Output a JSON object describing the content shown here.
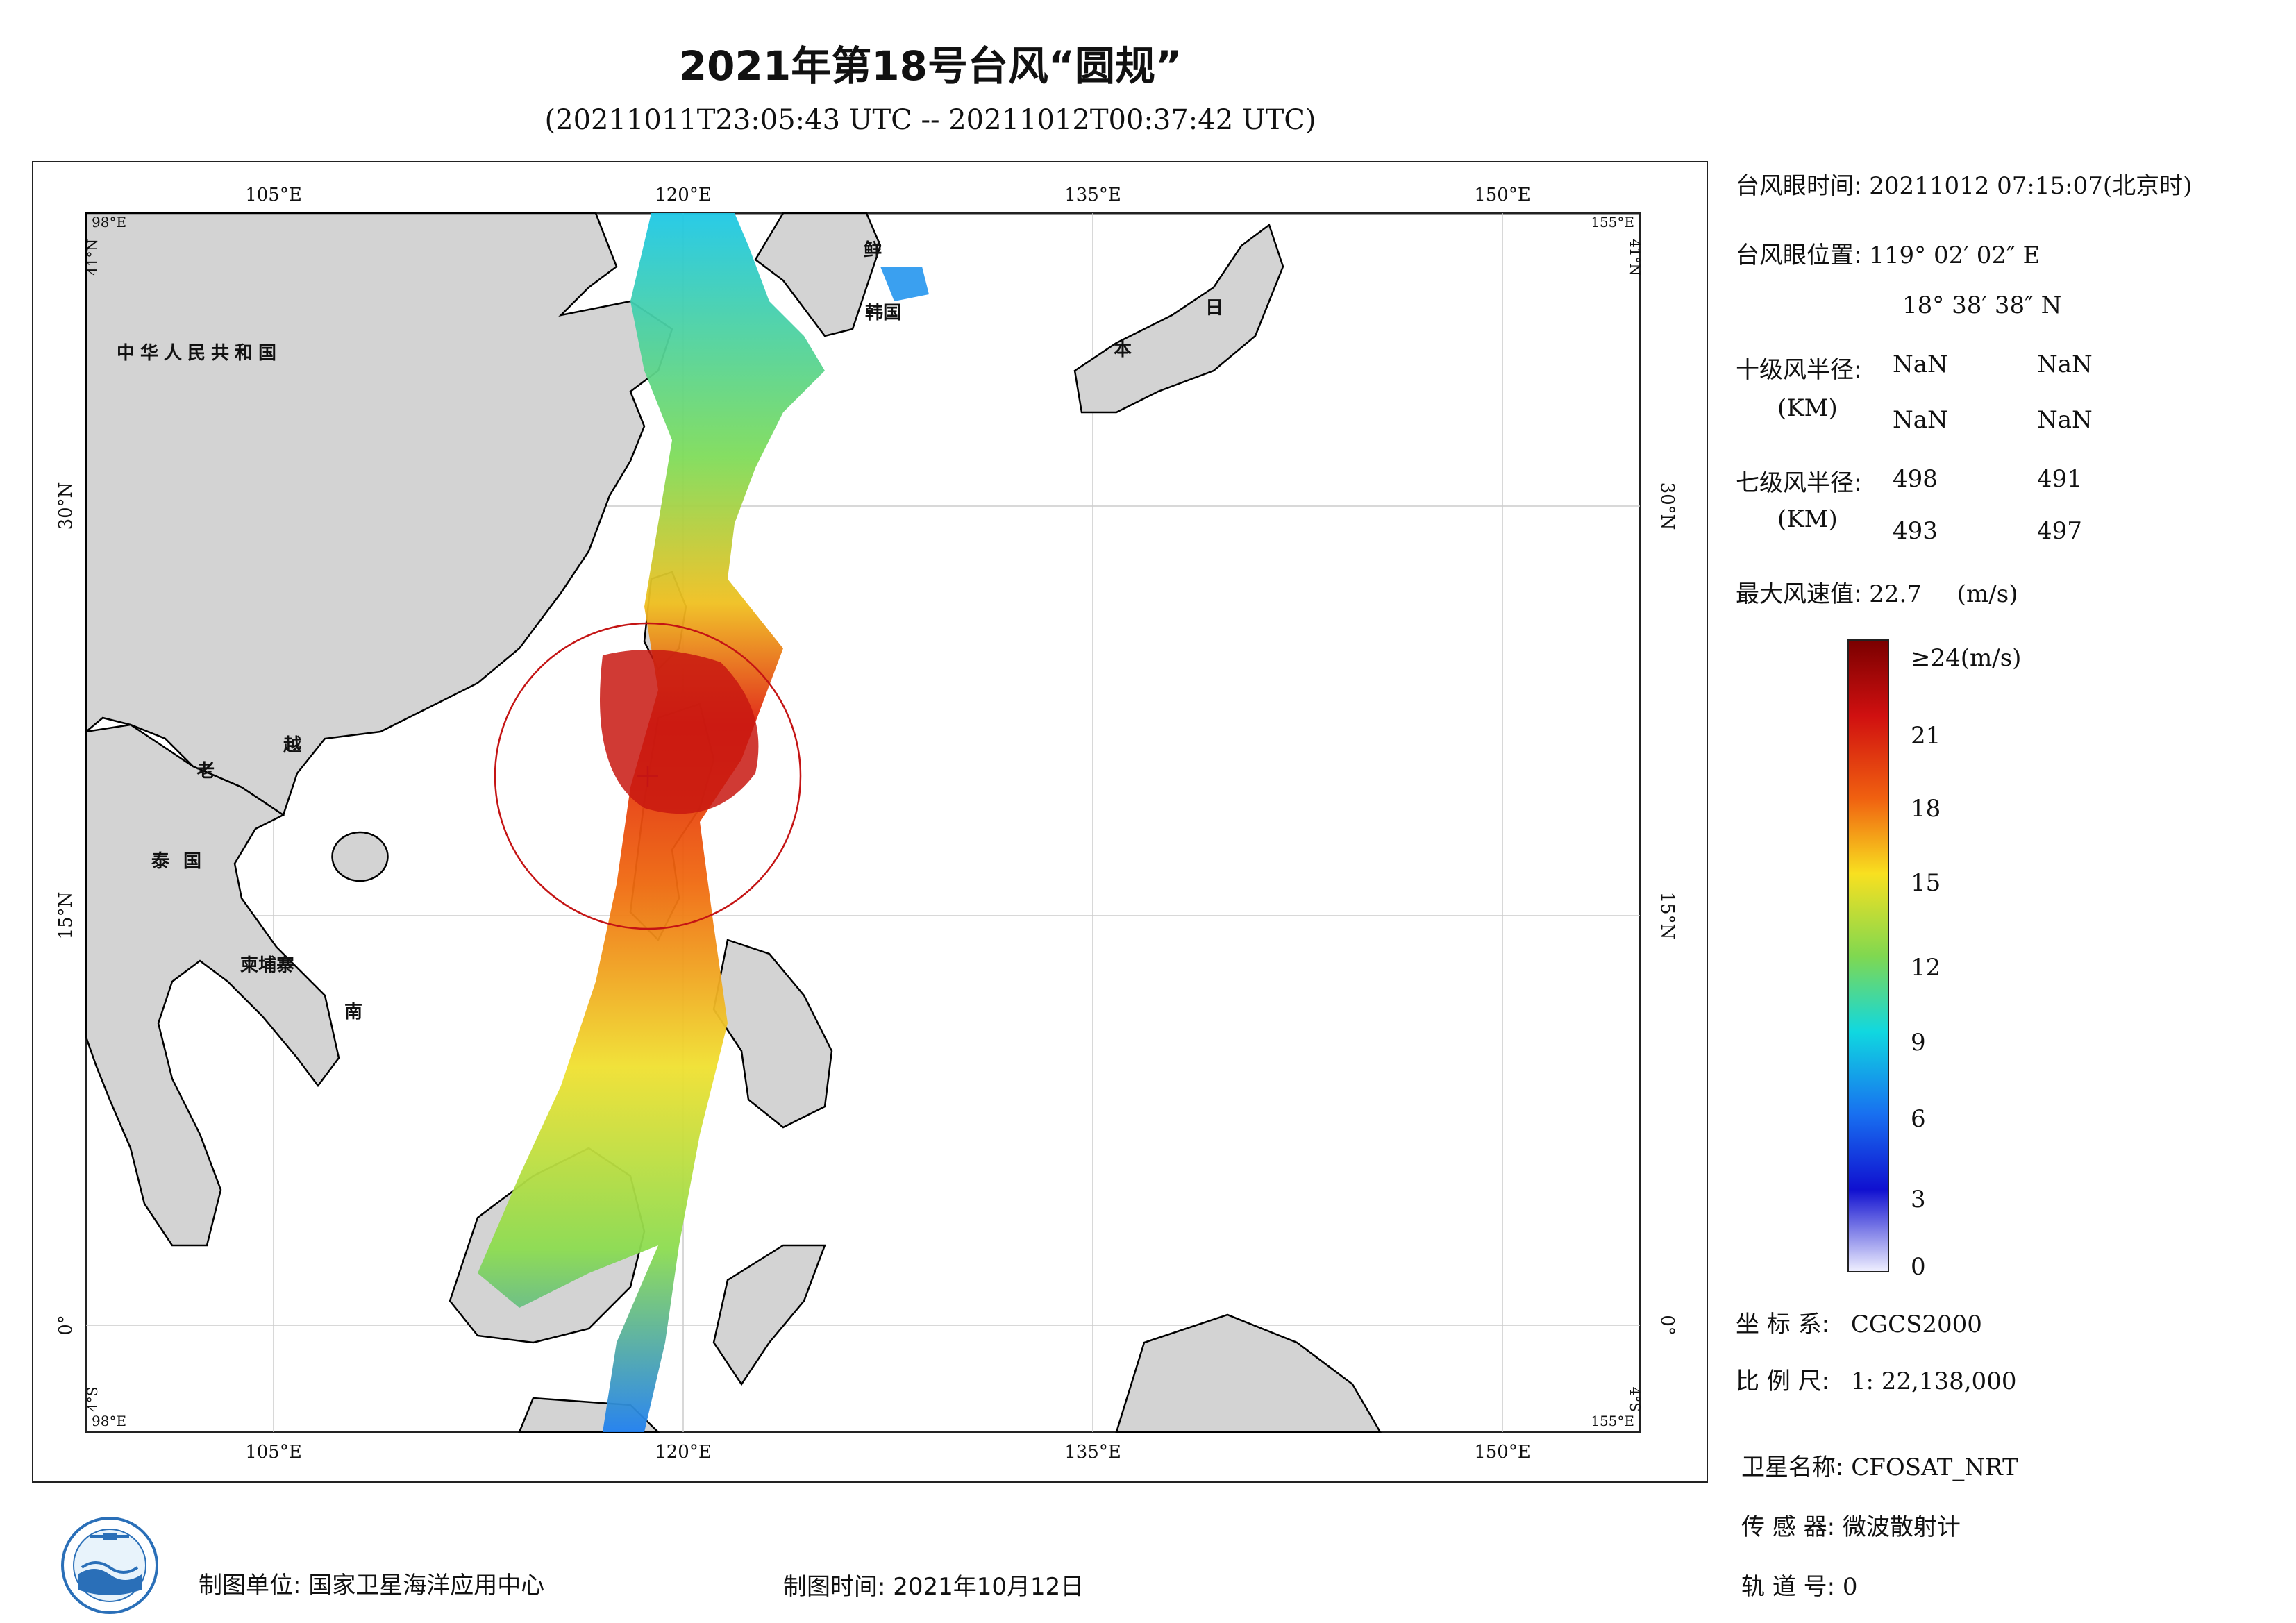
{
  "title": "2021年第18号台风“圆规”",
  "subtitle": "(20211011T23:05:43 UTC -- 20211012T00:37:42 UTC)",
  "map": {
    "lon_ticks": [
      "105°E",
      "120°E",
      "135°E",
      "150°E"
    ],
    "lat_ticks": [
      "30°N",
      "15°N",
      "0°"
    ],
    "corner_labels": {
      "top_left_lon": "98°E",
      "top_left_lat": "41°N",
      "top_right_lon": "155°E",
      "top_right_lat": "41°N",
      "bottom_left_lon": "98°E",
      "bottom_left_lat": "4°S",
      "bottom_right_lon": "155°E",
      "bottom_right_lat": "4°S"
    },
    "country_labels": {
      "prc": "中华人民共和国",
      "laos": "老",
      "vietnam_a": "越",
      "vietnam_b": "南",
      "thailand": "泰国",
      "cambodia": "柬埔寨",
      "japan_a": "日",
      "japan_b": "本",
      "korea_n": "鲜",
      "korea_s": "韩国"
    },
    "typhoon_center_lon": 119.03,
    "typhoon_center_lat": 18.64,
    "land_color": "#d3d3d3",
    "coast_color": "#000000"
  },
  "info": {
    "eye_time_label": "台风眼时间:",
    "eye_time_value": "20211012 07:15:07(北京时)",
    "eye_pos_label": "台风眼位置:",
    "eye_lon": "119° 02′ 02″ E",
    "eye_lat": "18° 38′ 38″ N",
    "r10_label": "十级风半径:",
    "r10_unit": "(KM)",
    "r10_values": [
      "NaN",
      "NaN",
      "NaN",
      "NaN"
    ],
    "r7_label": "七级风半径:",
    "r7_unit": "(KM)",
    "r7_values": [
      "498",
      "491",
      "493",
      "497"
    ],
    "max_wind_label": "最大风速值:",
    "max_wind_value": "22.7",
    "max_wind_unit": "(m/s)"
  },
  "colorbar": {
    "ticks": [
      "≥24(m/s)",
      "21",
      "18",
      "15",
      "12",
      "9",
      "6",
      "3",
      "0"
    ],
    "min": 0,
    "max": 24
  },
  "meta": {
    "crs_label": "坐 标 系:",
    "crs_value": "CGCS2000",
    "scale_label": "比 例 尺:",
    "scale_value": "1: 22,138,000",
    "sat_label": "卫星名称:",
    "sat_value": "CFOSAT_NRT",
    "sensor_label": "传 感 器:",
    "sensor_value": "微波散射计",
    "orbit_label": "轨 道 号:",
    "orbit_value": "0"
  },
  "footer": {
    "producer": "制图单位: 国家卫星海洋应用中心",
    "date": "制图时间: 2021年10月12日"
  }
}
